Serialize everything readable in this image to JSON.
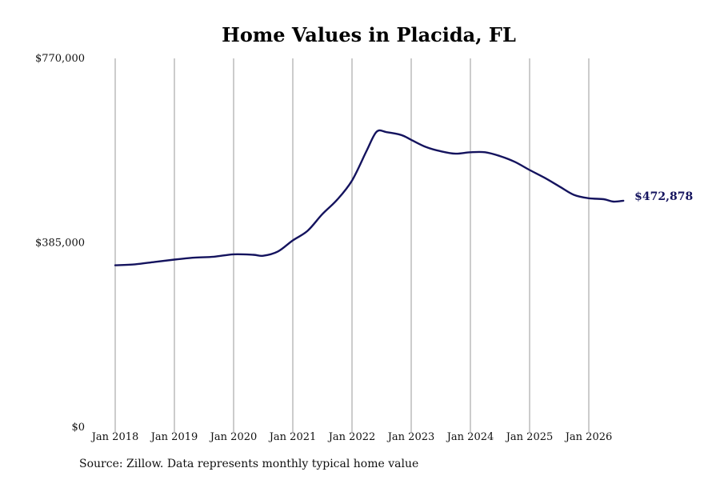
{
  "chart_data": {
    "type": "line",
    "title": "Home Values in Placida, FL",
    "xlabel": "",
    "ylabel": "",
    "ylim": [
      0,
      770000
    ],
    "y_ticks": [
      {
        "value": 0,
        "label": "$0"
      },
      {
        "value": 385000,
        "label": "$385,000"
      },
      {
        "value": 770000,
        "label": "$770,000"
      }
    ],
    "x_range": [
      "2018-01",
      "2026-08"
    ],
    "x_ticks": [
      {
        "date": "2018-01",
        "label": "Jan 2018"
      },
      {
        "date": "2019-01",
        "label": "Jan 2019"
      },
      {
        "date": "2020-01",
        "label": "Jan 2020"
      },
      {
        "date": "2021-01",
        "label": "Jan 2021"
      },
      {
        "date": "2022-01",
        "label": "Jan 2022"
      },
      {
        "date": "2023-01",
        "label": "Jan 2023"
      },
      {
        "date": "2024-01",
        "label": "Jan 2024"
      },
      {
        "date": "2025-01",
        "label": "Jan 2025"
      },
      {
        "date": "2026-01",
        "label": "Jan 2026"
      }
    ],
    "vertical_grid": true,
    "line_color": "#14135e",
    "grid_color": "#999999",
    "series": [
      {
        "name": "",
        "points": [
          {
            "x": "2018-01",
            "y": 338000
          },
          {
            "x": "2018-05",
            "y": 340000
          },
          {
            "x": "2018-09",
            "y": 345000
          },
          {
            "x": "2019-01",
            "y": 350000
          },
          {
            "x": "2019-05",
            "y": 354000
          },
          {
            "x": "2019-09",
            "y": 356000
          },
          {
            "x": "2020-01",
            "y": 361000
          },
          {
            "x": "2020-05",
            "y": 360000
          },
          {
            "x": "2020-07",
            "y": 358000
          },
          {
            "x": "2020-10",
            "y": 367000
          },
          {
            "x": "2021-01",
            "y": 390000
          },
          {
            "x": "2021-04",
            "y": 410000
          },
          {
            "x": "2021-07",
            "y": 445000
          },
          {
            "x": "2021-10",
            "y": 475000
          },
          {
            "x": "2022-01",
            "y": 515000
          },
          {
            "x": "2022-04",
            "y": 578000
          },
          {
            "x": "2022-06",
            "y": 617000
          },
          {
            "x": "2022-08",
            "y": 616000
          },
          {
            "x": "2022-11",
            "y": 610000
          },
          {
            "x": "2023-01",
            "y": 600000
          },
          {
            "x": "2023-04",
            "y": 585000
          },
          {
            "x": "2023-07",
            "y": 576000
          },
          {
            "x": "2023-10",
            "y": 571000
          },
          {
            "x": "2024-01",
            "y": 574000
          },
          {
            "x": "2024-04",
            "y": 574000
          },
          {
            "x": "2024-07",
            "y": 566000
          },
          {
            "x": "2024-10",
            "y": 554000
          },
          {
            "x": "2025-01",
            "y": 537000
          },
          {
            "x": "2025-04",
            "y": 521000
          },
          {
            "x": "2025-07",
            "y": 503000
          },
          {
            "x": "2025-10",
            "y": 485000
          },
          {
            "x": "2026-01",
            "y": 478000
          },
          {
            "x": "2026-04",
            "y": 476000
          },
          {
            "x": "2026-06",
            "y": 471000
          },
          {
            "x": "2026-08",
            "y": 472878
          }
        ]
      }
    ],
    "annotations": [
      {
        "text": "$472,878",
        "x": "2026-08",
        "y": 472878
      }
    ]
  },
  "footer": {
    "source": "Source: Zillow. Data represents monthly typical home value"
  }
}
